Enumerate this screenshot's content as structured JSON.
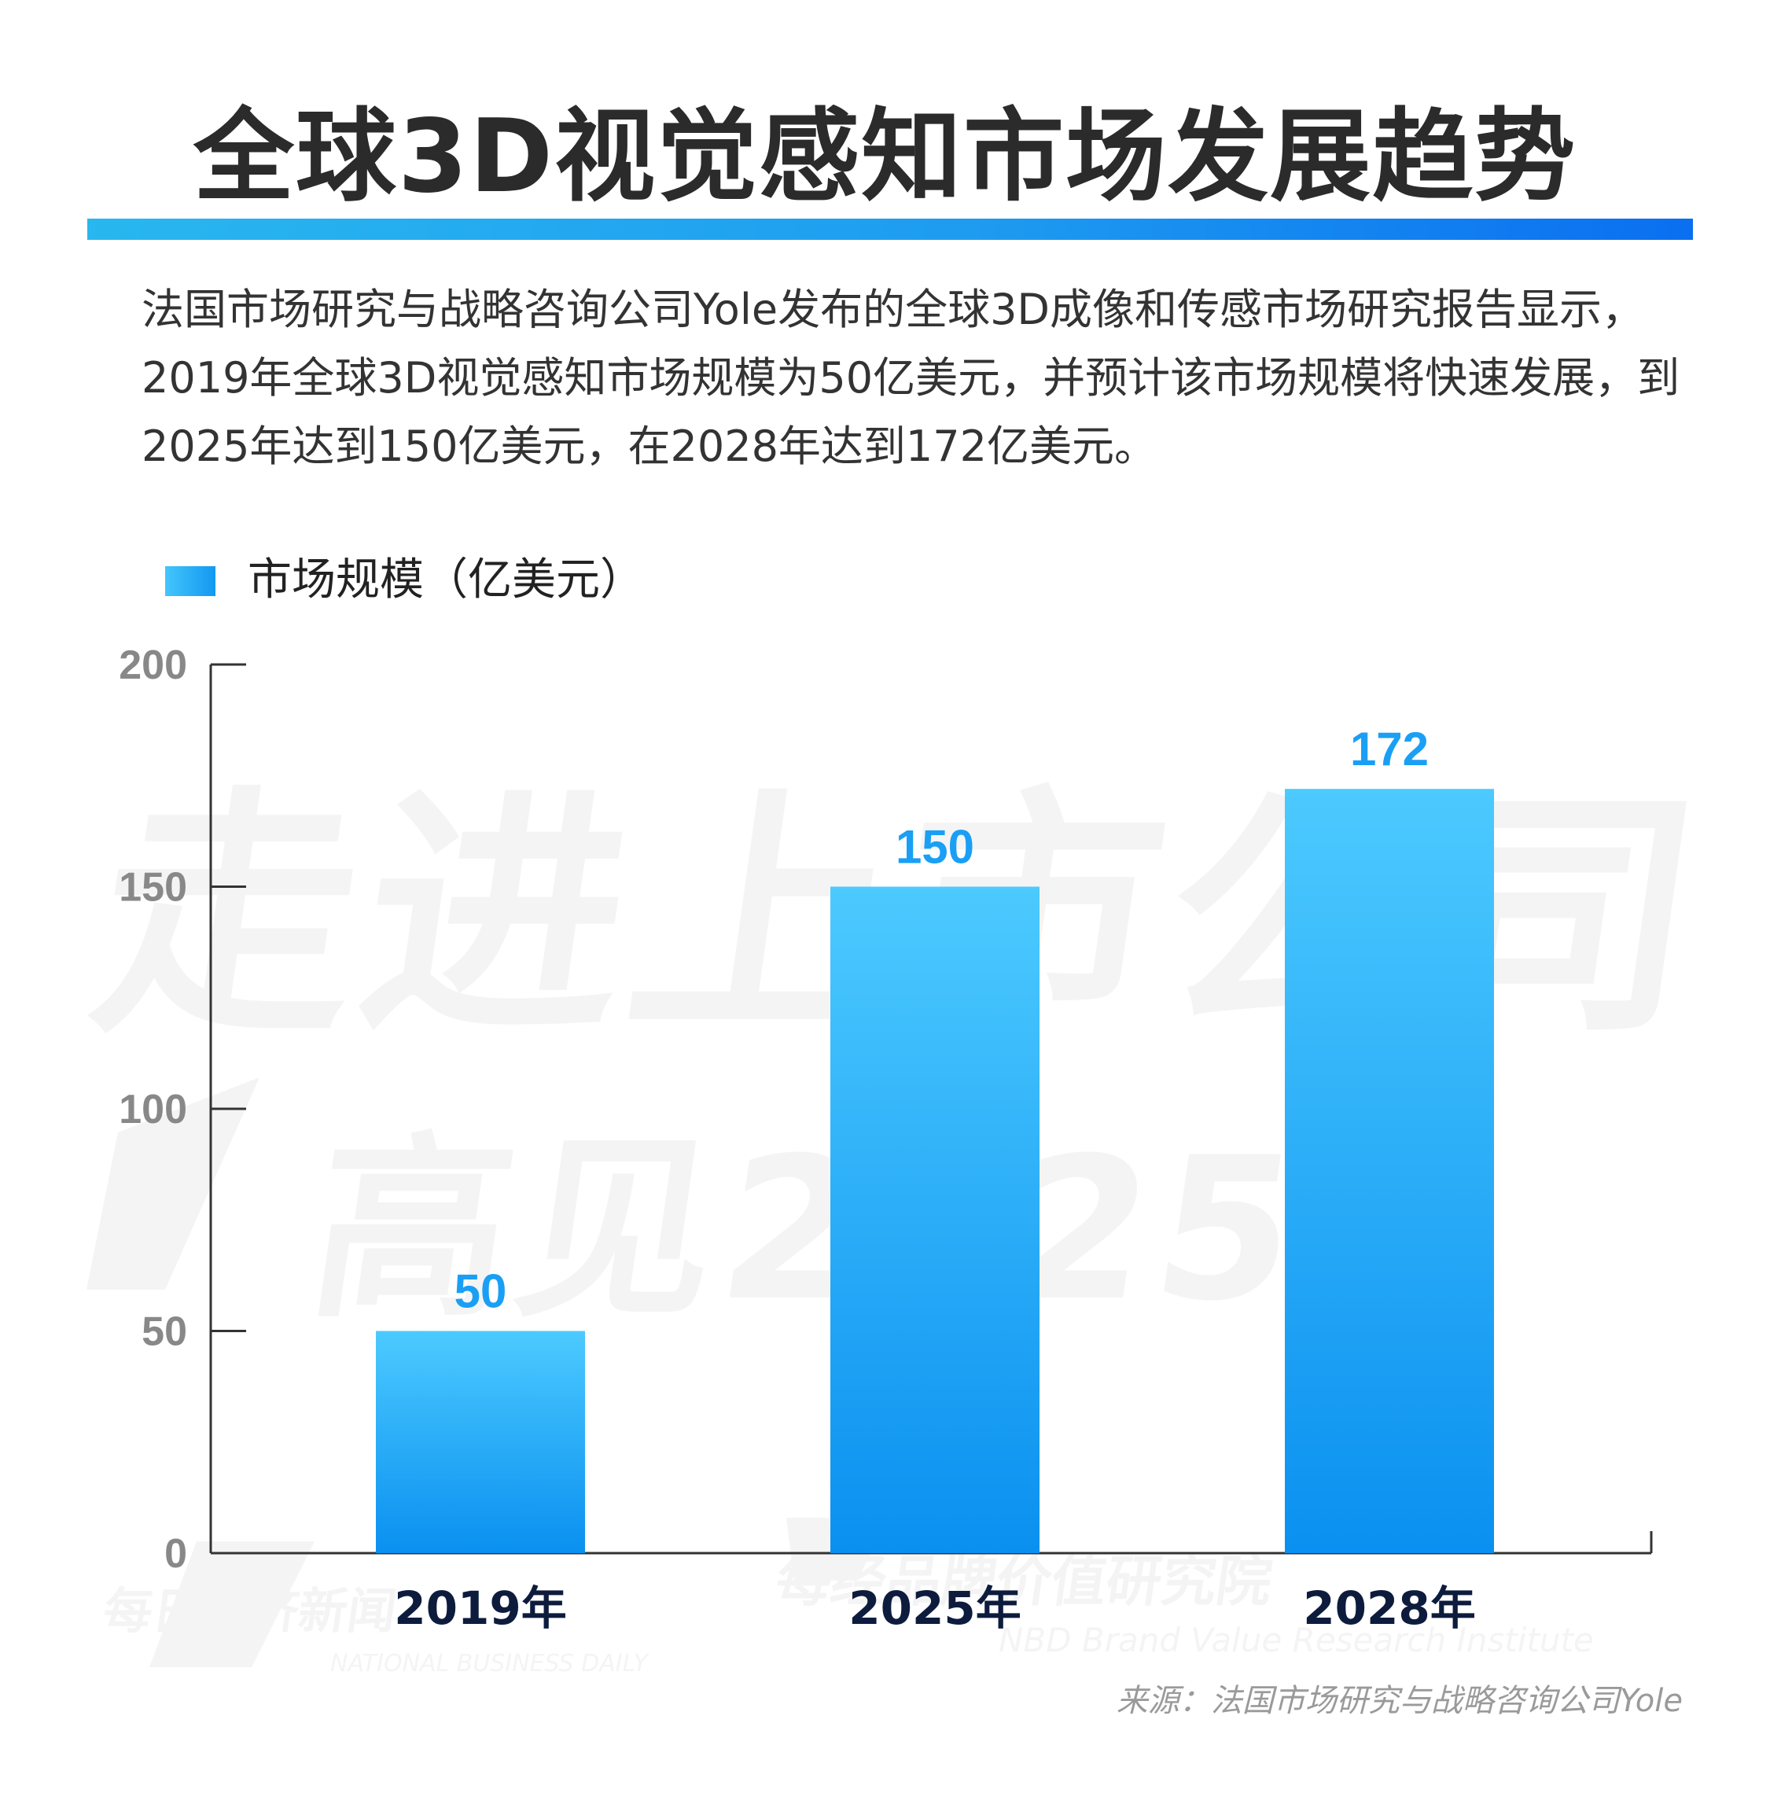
{
  "title": "全球3D视觉感知市场发展趋势",
  "intro": "法国市场研究与战略咨询公司Yole发布的全球3D成像和传感市场研究报告显示，2019年全球3D视觉感知市场规模为50亿美元，并预计该市场规模将快速发展，到2025年达到150亿美元，在2028年达到172亿美元。",
  "source": "来源：法国市场研究与战略咨询公司Yole",
  "watermark": {
    "line1": "走进上市公司",
    "line2": "高见2025",
    "brand1_cn": "每日经济新闻",
    "brand1_en": "NATIONAL BUSINESS DAILY",
    "brand2_cn": "每经品牌价值研究院",
    "brand2_en": "NBD Brand Value Research Institute"
  },
  "colors": {
    "bar_top": "#4ccaff",
    "bar_bottom": "#0a90f0",
    "value_label": "#1a9ff5",
    "category_label": "#0d1c3d",
    "tick_label": "#888888",
    "axis": "#333333"
  },
  "chart_data": {
    "type": "bar",
    "title": "",
    "xlabel": "",
    "ylabel": "",
    "categories": [
      "2019年",
      "2025年",
      "2028年"
    ],
    "series": [
      {
        "name": "市场规模（亿美元）",
        "values": [
          50,
          150,
          172
        ]
      }
    ],
    "value_labels": [
      "50",
      "150",
      "172"
    ],
    "ylim": [
      0,
      200
    ],
    "yticks": [
      0,
      50,
      100,
      150,
      200
    ],
    "ytick_labels": [
      "0",
      "50",
      "100",
      "150",
      "200"
    ],
    "grid": false,
    "legend": "top-left"
  }
}
